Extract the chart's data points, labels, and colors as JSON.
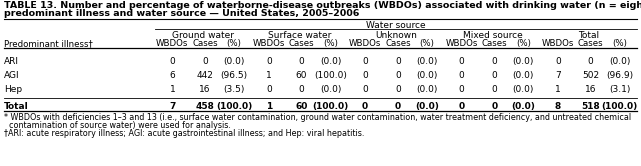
{
  "title_line1": "TABLE 13. Number and percentage of waterborne-disease outbreaks (WBDOs) associated with drinking water (n = eight),* by",
  "title_line2": "predominant illness and water source — United States, 2005–2006",
  "water_source_label": "Water source",
  "col_groups": [
    "Ground water",
    "Surface water",
    "Unknown",
    "Mixed source",
    "Total"
  ],
  "col_headers": [
    "WBDOs",
    "Cases",
    "(%)"
  ],
  "row_label_header": "Predominant illness†",
  "data": [
    [
      "ARI",
      "0",
      "0",
      "(0.0)",
      "0",
      "0",
      "(0.0)",
      "0",
      "0",
      "(0.0)",
      "0",
      "0",
      "(0.0)",
      "0",
      "0",
      "(0.0)"
    ],
    [
      "AGI",
      "6",
      "442",
      "(96.5)",
      "1",
      "60",
      "(100.0)",
      "0",
      "0",
      "(0.0)",
      "0",
      "0",
      "(0.0)",
      "7",
      "502",
      "(96.9)"
    ],
    [
      "Hep",
      "1",
      "16",
      "(3.5)",
      "0",
      "0",
      "(0.0)",
      "0",
      "0",
      "(0.0)",
      "0",
      "0",
      "(0.0)",
      "1",
      "16",
      "(3.1)"
    ],
    [
      "Total",
      "7",
      "458",
      "(100.0)",
      "1",
      "60",
      "(100.0)",
      "0",
      "0",
      "(0.0)",
      "0",
      "0",
      "(0.0)",
      "8",
      "518",
      "(100.0)"
    ]
  ],
  "footnote1": "* WBDOs with deficiencies 1–3 and 13 (i.e., surface water contamination, ground water contamination, water treatment deficiency, and untreated chemical",
  "footnote1b": "  contamination of source water) were used for analysis.",
  "footnote2": "†ARI: acute respiratory illness; AGI: acute gastrointestinal illness; and Hep: viral hepatitis.",
  "bg_color": "#ffffff",
  "text_color": "#000000",
  "title_fontsize": 6.8,
  "header_fontsize": 6.5,
  "data_fontsize": 6.5,
  "footnote_fontsize": 5.8
}
